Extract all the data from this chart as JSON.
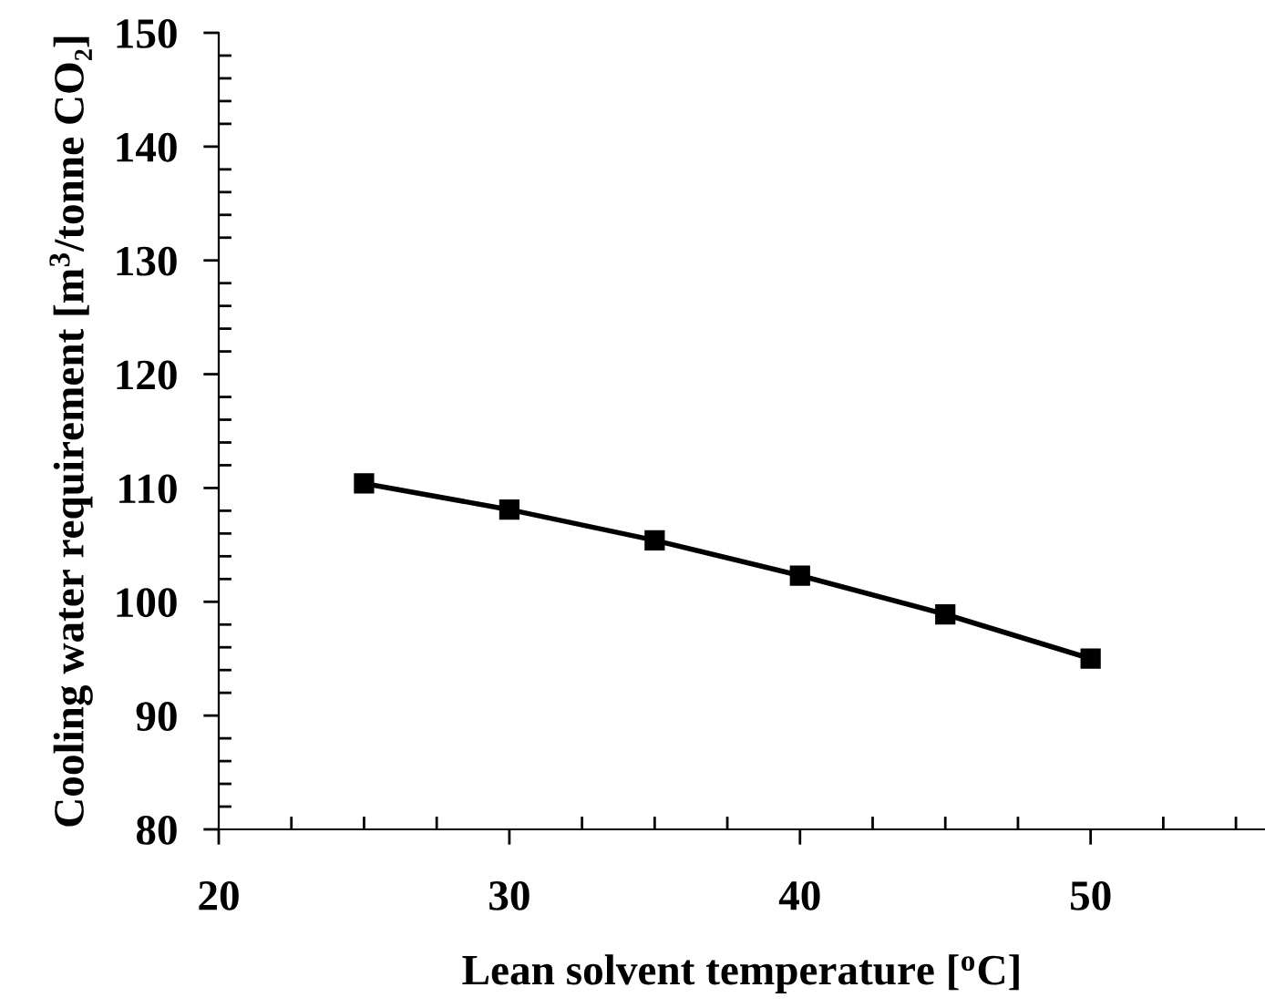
{
  "chart_data": {
    "type": "line",
    "xlabel": "Lean solvent temperature [$^{o}$C]",
    "ylabel": "Cooling water requirement [m$^{3}$/tonne CO₂]",
    "x": [
      25,
      30,
      35,
      40,
      45,
      50
    ],
    "series": [
      {
        "color": "#000000",
        "values": [
          110.4,
          108.1,
          105.4,
          102.3,
          98.9,
          95.0
        ]
      }
    ],
    "marker": "square",
    "line_style": "solid",
    "grid": false,
    "legend": false,
    "xlim": [
      20,
      56
    ],
    "ylim": [
      80,
      150
    ],
    "xticks": [
      20,
      {
        "value": 22.5,
        "label": null
      },
      {
        "value": 25,
        "label": null
      },
      {
        "value": 27.5,
        "label": null
      },
      30,
      {
        "value": 32.5,
        "label": null
      },
      {
        "value": 35,
        "label": null
      },
      {
        "value": 37.5,
        "label": null
      },
      40,
      {
        "value": 42.5,
        "label": null
      },
      {
        "value": 45,
        "label": null
      },
      {
        "value": 47.5,
        "label": null
      },
      50,
      {
        "value": 52.5,
        "label": null
      },
      {
        "value": 55,
        "label": null
      }
    ],
    "yticks": [
      80,
      {
        "value": 82,
        "label": null
      },
      {
        "value": 84,
        "label": null
      },
      {
        "value": 86,
        "label": null
      },
      {
        "value": 88,
        "label": null
      },
      90,
      {
        "value": 92,
        "label": null
      },
      {
        "value": 94,
        "label": null
      },
      {
        "value": 96,
        "label": null
      },
      {
        "value": 98,
        "label": null
      },
      100,
      {
        "value": 102,
        "label": null
      },
      {
        "value": 104,
        "label": null
      },
      {
        "value": 106,
        "label": null
      },
      {
        "value": 108,
        "label": null
      },
      110,
      {
        "value": 112,
        "label": null
      },
      {
        "value": 114,
        "label": null
      },
      {
        "value": 116,
        "label": null
      },
      {
        "value": 118,
        "label": null
      },
      120,
      {
        "value": 122,
        "label": null
      },
      {
        "value": 124,
        "label": null
      },
      {
        "value": 126,
        "label": null
      },
      {
        "value": 128,
        "label": null
      },
      130,
      {
        "value": 132,
        "label": null
      },
      {
        "value": 134,
        "label": null
      },
      {
        "value": 136,
        "label": null
      },
      {
        "value": 138,
        "label": null
      },
      140,
      {
        "value": 142,
        "label": null
      },
      {
        "value": 144,
        "label": null
      },
      {
        "value": 146,
        "label": null
      },
      {
        "value": 148,
        "label": null
      },
      150
    ]
  }
}
